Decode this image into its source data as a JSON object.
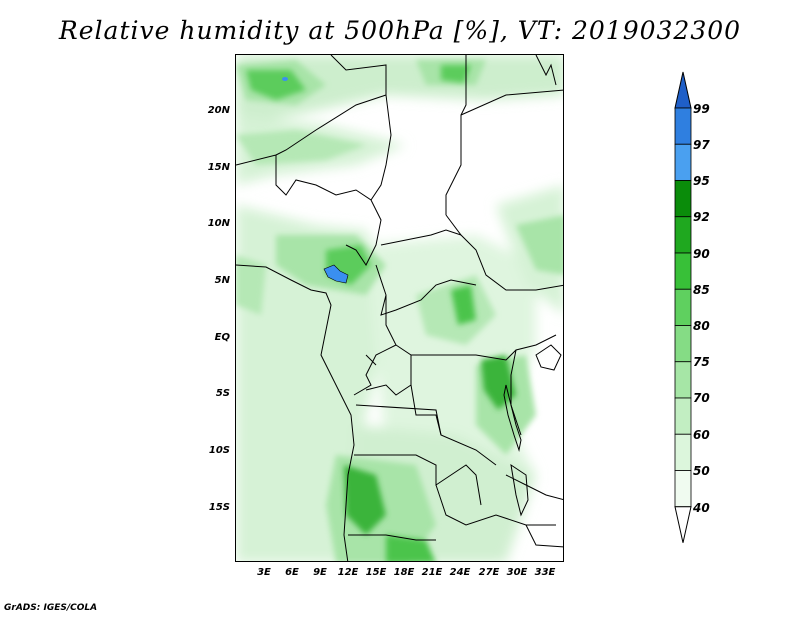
{
  "title": "Relative humidity at 500hPa [%], VT: 2019032300",
  "credit": "GrADS: IGES/COLA",
  "lat_labels": [
    "20N",
    "15N",
    "10N",
    "5N",
    "EQ",
    "5S",
    "10S",
    "15S"
  ],
  "lon_labels": [
    "3E",
    "6E",
    "9E",
    "12E",
    "15E",
    "18E",
    "21E",
    "24E",
    "27E",
    "30E",
    "33E"
  ],
  "colorbar": {
    "levels": [
      "99",
      "97",
      "95",
      "92",
      "90",
      "85",
      "80",
      "75",
      "70",
      "60",
      "50",
      "40"
    ],
    "colors": [
      "#1f5fc8",
      "#2f7fe0",
      "#4aa0f0",
      "#0a8c0a",
      "#1fa81f",
      "#38c038",
      "#5fd05f",
      "#85dc85",
      "#a6e6a6",
      "#c2eec2",
      "#dcf6dc",
      "#f0fbf0",
      "#ffffff"
    ]
  },
  "palette": {
    "high_green": "#1c9a1c",
    "mid_green": "#66d066",
    "light_green": "#b8eab8",
    "pale_green": "#e6f8e6",
    "blue": "#3a8ff0"
  }
}
